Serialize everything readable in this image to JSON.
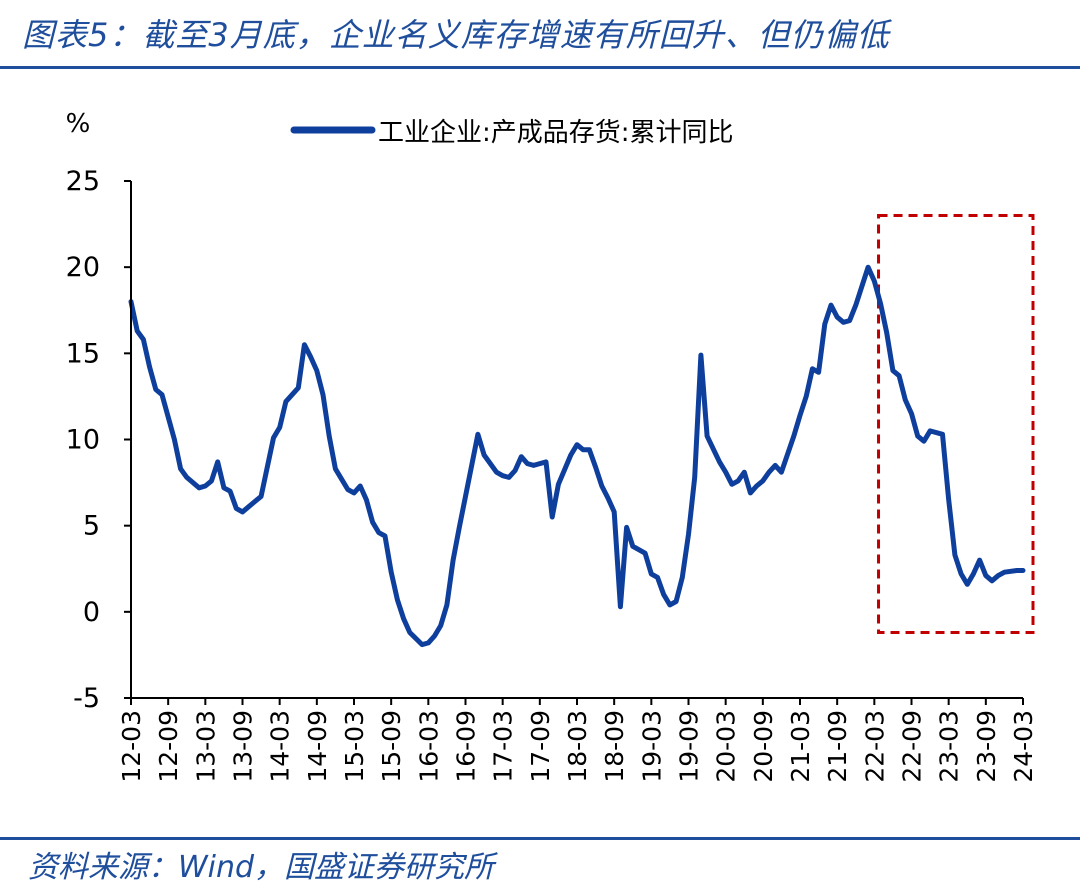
{
  "figure": {
    "title": "图表5：截至3月底，企业名义库存增速有所回升、但仍偏低",
    "source": "资料来源：Wind，国盛证券研究所"
  },
  "colors": {
    "series": "#0f3f9c",
    "frame": "#1f4e9c",
    "highlight": "#c00000",
    "axis": "#000000"
  },
  "chart_data": {
    "type": "line",
    "ylabel": "%",
    "ylim": [
      -5,
      25
    ],
    "yticks": [
      -5,
      0,
      5,
      10,
      15,
      20,
      25
    ],
    "xticks": [
      "12-03",
      "12-09",
      "13-03",
      "13-09",
      "14-03",
      "14-09",
      "15-03",
      "15-09",
      "16-03",
      "16-09",
      "17-03",
      "17-09",
      "18-03",
      "18-09",
      "19-03",
      "19-09",
      "20-03",
      "20-09",
      "21-03",
      "21-09",
      "22-03",
      "22-09",
      "23-03",
      "23-09",
      "24-03"
    ],
    "legend_position": "top-center",
    "grid": false,
    "highlight_range": {
      "from": "22-04",
      "to": "24-03",
      "ymin": -1.2,
      "ymax": 23
    },
    "series": [
      {
        "name": "工业企业:产成品存货:累计同比",
        "x": [
          "12-03",
          "12-04",
          "12-05",
          "12-06",
          "12-07",
          "12-08",
          "12-09",
          "12-10",
          "12-11",
          "12-12",
          "13-02",
          "13-03",
          "13-04",
          "13-05",
          "13-06",
          "13-07",
          "13-08",
          "13-09",
          "13-10",
          "13-11",
          "13-12",
          "14-02",
          "14-03",
          "14-04",
          "14-05",
          "14-06",
          "14-07",
          "14-08",
          "14-09",
          "14-10",
          "14-11",
          "14-12",
          "15-02",
          "15-03",
          "15-04",
          "15-05",
          "15-06",
          "15-07",
          "15-08",
          "15-09",
          "15-10",
          "15-11",
          "15-12",
          "16-02",
          "16-03",
          "16-04",
          "16-05",
          "16-06",
          "16-07",
          "16-08",
          "16-09",
          "16-10",
          "16-11",
          "16-12",
          "17-02",
          "17-03",
          "17-04",
          "17-05",
          "17-06",
          "17-07",
          "17-08",
          "17-09",
          "17-10",
          "17-11",
          "17-12",
          "18-02",
          "18-03",
          "18-04",
          "18-05",
          "18-06",
          "18-07",
          "18-08",
          "18-09",
          "18-10",
          "18-11",
          "18-12",
          "19-02",
          "19-03",
          "19-04",
          "19-05",
          "19-06",
          "19-07",
          "19-08",
          "19-09",
          "19-10",
          "19-11",
          "19-12",
          "20-02",
          "20-03",
          "20-04",
          "20-05",
          "20-06",
          "20-07",
          "20-08",
          "20-09",
          "20-10",
          "20-11",
          "20-12",
          "21-02",
          "21-03",
          "21-04",
          "21-05",
          "21-06",
          "21-07",
          "21-08",
          "21-09",
          "21-10",
          "21-11",
          "21-12",
          "22-02",
          "22-03",
          "22-04",
          "22-05",
          "22-06",
          "22-07",
          "22-08",
          "22-09",
          "22-10",
          "22-11",
          "22-12",
          "23-02",
          "23-03",
          "23-04",
          "23-05",
          "23-06",
          "23-07",
          "23-08",
          "23-09",
          "23-10",
          "23-11",
          "23-12",
          "24-02",
          "24-03"
        ],
        "values": [
          18.0,
          16.3,
          15.8,
          14.2,
          12.9,
          12.6,
          11.3,
          10.0,
          8.3,
          7.8,
          7.2,
          7.3,
          7.6,
          8.7,
          7.2,
          7.0,
          6.0,
          5.8,
          6.1,
          6.4,
          6.7,
          10.1,
          10.7,
          12.2,
          12.6,
          13.0,
          15.5,
          14.8,
          14.0,
          12.6,
          10.2,
          8.3,
          7.1,
          6.9,
          7.3,
          6.5,
          5.2,
          4.6,
          4.4,
          2.3,
          0.7,
          -0.4,
          -1.2,
          -1.9,
          -1.8,
          -1.4,
          -0.8,
          0.4,
          3.0,
          4.9,
          6.7,
          8.5,
          10.3,
          9.1,
          8.1,
          7.9,
          7.8,
          8.2,
          9.0,
          8.6,
          8.5,
          8.6,
          8.7,
          5.5,
          7.4,
          9.1,
          9.7,
          9.4,
          9.4,
          8.4,
          7.3,
          6.6,
          5.8,
          0.3,
          4.9,
          3.8,
          3.4,
          2.2,
          2.0,
          1.0,
          0.4,
          0.6,
          2.0,
          4.5,
          7.8,
          14.9,
          10.2,
          8.7,
          8.1,
          7.4,
          7.6,
          8.1,
          6.9,
          7.3,
          7.6,
          8.1,
          8.5,
          8.1,
          10.2,
          11.4,
          12.5,
          14.1,
          13.9,
          16.7,
          17.8,
          17.1,
          16.8,
          16.9,
          17.8,
          20.0,
          19.2,
          17.9,
          16.2,
          14.0,
          13.7,
          12.3,
          11.5,
          10.2,
          9.9,
          10.5,
          10.3,
          6.5,
          3.3,
          2.2,
          1.6,
          2.2,
          3.0,
          2.1,
          1.8,
          2.1,
          2.3,
          2.4,
          2.4
        ]
      }
    ]
  }
}
